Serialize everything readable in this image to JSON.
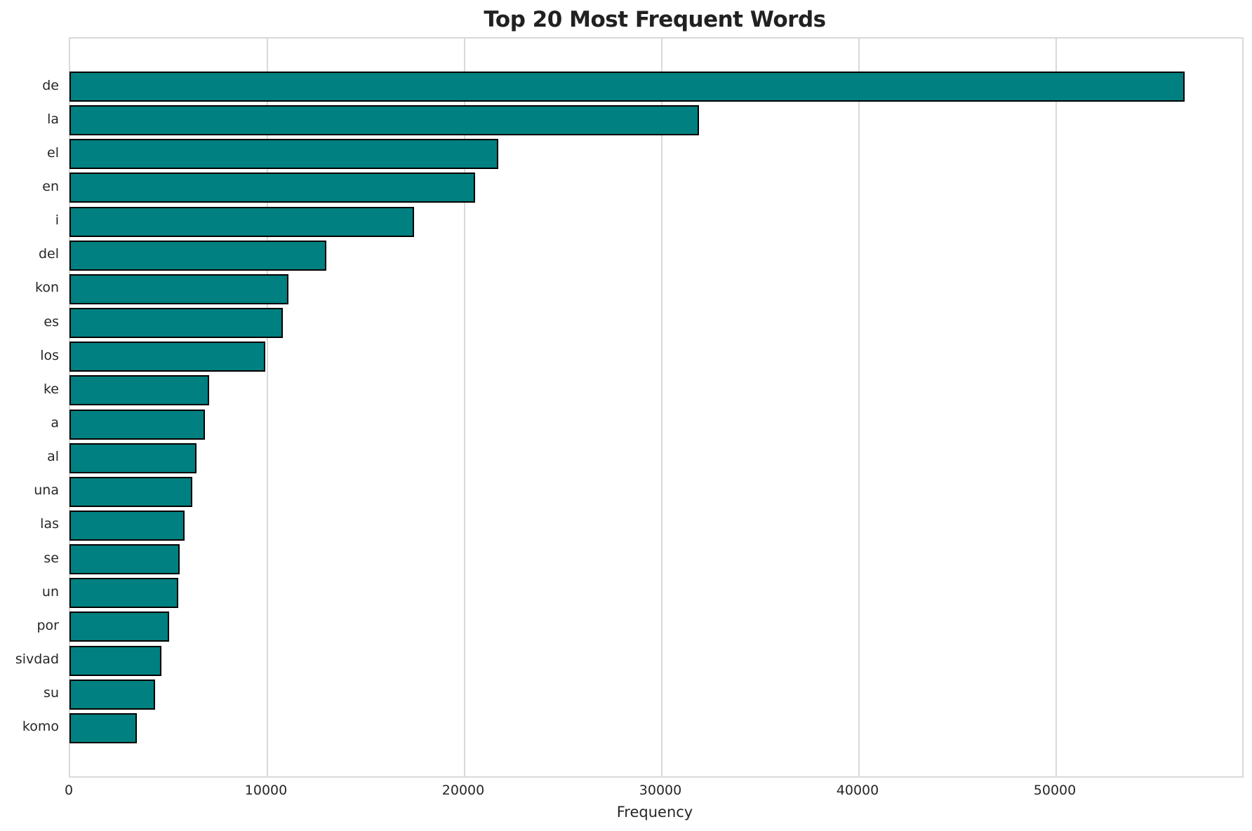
{
  "chart_data": {
    "type": "bar",
    "orientation": "horizontal",
    "title": "Top 20 Most Frequent Words",
    "xlabel": "Frequency",
    "ylabel": "",
    "categories": [
      "de",
      "la",
      "el",
      "en",
      "i",
      "del",
      "kon",
      "es",
      "los",
      "ke",
      "a",
      "al",
      "una",
      "las",
      "se",
      "un",
      "por",
      "sivdad",
      "su",
      "komo"
    ],
    "values": [
      56500,
      31900,
      21700,
      20550,
      17450,
      13000,
      11050,
      10800,
      9900,
      7050,
      6830,
      6400,
      6180,
      5790,
      5540,
      5480,
      5030,
      4620,
      4310,
      3390
    ],
    "xticks": [
      0,
      10000,
      20000,
      30000,
      40000,
      50000
    ],
    "xtick_labels": [
      "0",
      "10000",
      "20000",
      "30000",
      "40000",
      "50000"
    ],
    "xlim": [
      0,
      59430
    ],
    "grid": true,
    "legend": false,
    "colors": {
      "bar_fill": "#008080",
      "bar_edge": "#000000",
      "grid": "#d9d9d9",
      "spine": "#d9d9d9",
      "title_text": "#212121",
      "tick_text": "#262626",
      "background": "#ffffff"
    }
  }
}
